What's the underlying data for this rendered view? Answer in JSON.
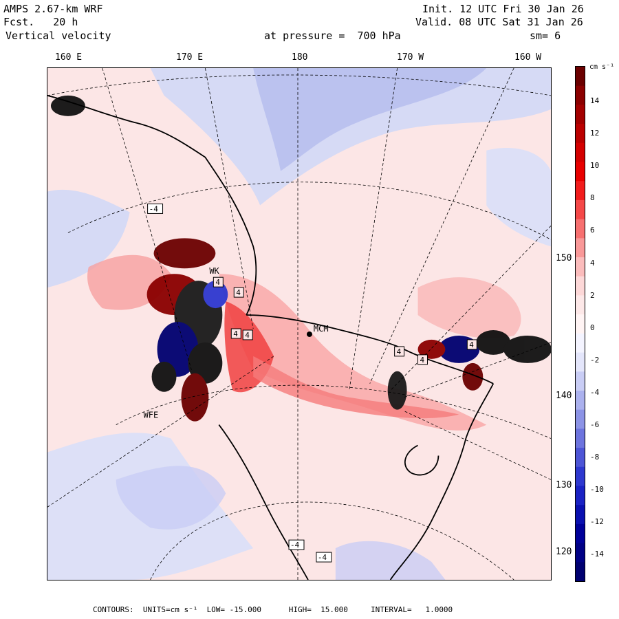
{
  "header": {
    "model": "AMPS 2.67-km WRF",
    "fcst": "Fcst.   20 h",
    "field": "Vertical velocity",
    "init": "Init. 12 UTC Fri 30 Jan 26",
    "valid": "Valid. 08 UTC Sat 31 Jan 26",
    "level_label": "at pressure =  700 hPa",
    "smoothing": "sm= 6"
  },
  "lon_labels": [
    "160 E",
    "170 E",
    "180",
    "170 W",
    "160 W"
  ],
  "lat_labels": [
    "150 W",
    "140 W",
    "130 W",
    "120 W"
  ],
  "colorbar": {
    "units_label": "cm s⁻¹",
    "ticks": [
      "14",
      "12",
      "10",
      "8",
      "6",
      "4",
      "2",
      "0",
      "-2",
      "-4",
      "-6",
      "-8",
      "-10",
      "-12",
      "-14"
    ],
    "colors": [
      "#6b0000",
      "#8b0000",
      "#a30000",
      "#bb0000",
      "#d40000",
      "#e80000",
      "#f21c1c",
      "#f54848",
      "#f77070",
      "#f99898",
      "#fbbcbc",
      "#fdd8d8",
      "#fde8e8",
      "#fff4f4",
      "#f4f4ff",
      "#e4e6fb",
      "#c9cdf5",
      "#abb1ee",
      "#8c93e6",
      "#6d74de",
      "#4d55d6",
      "#2e38cf",
      "#1a22c4",
      "#0a10b0",
      "#00009a",
      "#000085",
      "#000070"
    ]
  },
  "stations": {
    "mcm": "MCM",
    "wfe": "WFE",
    "wk": "WK"
  },
  "extremes": [
    "4",
    "4",
    "4",
    "4",
    "4",
    "4",
    "4",
    "-4",
    "-4",
    "-4"
  ],
  "footer": {
    "text": "CONTOURS:  UNITS=cm s⁻¹  LOW= -15.000      HIGH=  15.000     INTERVAL=   1.0000"
  }
}
